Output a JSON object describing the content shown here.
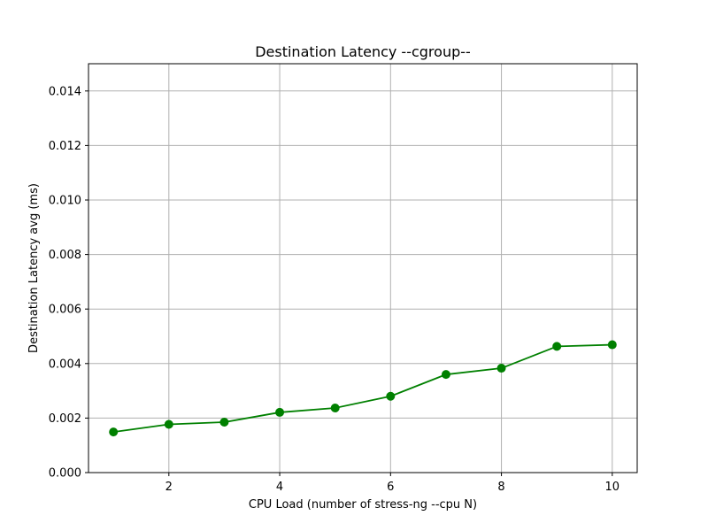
{
  "chart_data": {
    "type": "line",
    "title": "Destination Latency --cgroup--",
    "xlabel": "CPU Load (number of stress-ng --cpu N)",
    "ylabel": "Destination Latency avg (ms)",
    "xlim": [
      0.55,
      10.45
    ],
    "ylim": [
      0.0,
      0.015
    ],
    "xticks": [
      2,
      4,
      6,
      8,
      10
    ],
    "xtick_labels": [
      "2",
      "4",
      "6",
      "8",
      "10"
    ],
    "yticks": [
      0.0,
      0.002,
      0.004,
      0.006,
      0.008,
      0.01,
      0.012,
      0.014
    ],
    "ytick_labels": [
      "0.000",
      "0.002",
      "0.004",
      "0.006",
      "0.008",
      "0.010",
      "0.012",
      "0.014"
    ],
    "grid": true,
    "series": [
      {
        "color": "#008000",
        "marker": "circle",
        "x": [
          1,
          2,
          3,
          4,
          5,
          6,
          7,
          8,
          9,
          10
        ],
        "y": [
          0.00149,
          0.00177,
          0.00185,
          0.00221,
          0.00237,
          0.0028,
          0.0036,
          0.00383,
          0.00463,
          0.00469
        ]
      }
    ]
  }
}
